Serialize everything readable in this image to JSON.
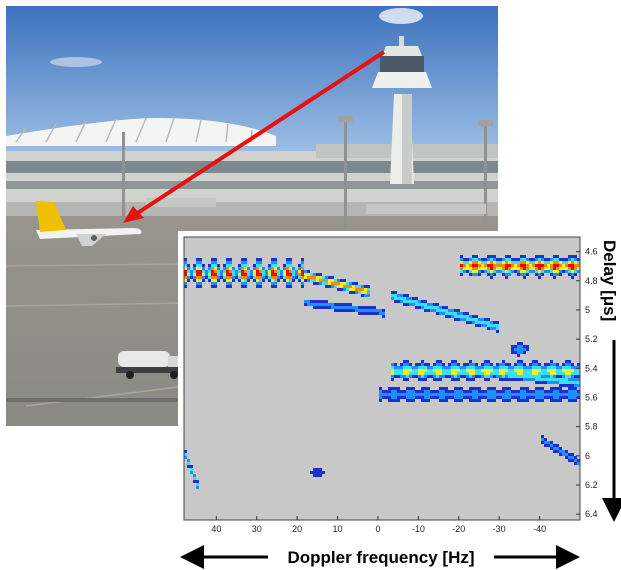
{
  "chart_data": {
    "type": "heatmap",
    "title": "",
    "xlabel": "Doppler frequency [Hz]",
    "ylabel": "Delay [μs]",
    "x_axis_direction": "reversed",
    "xlim": [
      48,
      -50
    ],
    "ylim": [
      4.5,
      6.44
    ],
    "x_ticks": [
      40,
      30,
      20,
      10,
      0,
      -10,
      -20,
      -30,
      -40
    ],
    "y_ticks": [
      4.6,
      4.8,
      5,
      5.2,
      5.4,
      5.6,
      5.8,
      6,
      6.2,
      6.4
    ],
    "background_color": "#c8c8c8",
    "colormap": [
      "#1a30d0",
      "#1f8fff",
      "#38e0f0",
      "#f0f020",
      "#ff8800",
      "#e01010"
    ],
    "components": [
      {
        "kind": "periodic-band",
        "x": [
          48,
          18
        ],
        "y": 4.75,
        "period_hz": 3.7,
        "peak_intensity": 1.0,
        "halfwidth_delay": 0.11
      },
      {
        "kind": "ridge",
        "x": [
          20,
          2
        ],
        "y": [
          4.75,
          4.88
        ],
        "peak_intensity": 0.85
      },
      {
        "kind": "ridge",
        "x": [
          -3,
          -30
        ],
        "y": [
          4.9,
          5.12
        ],
        "peak_intensity": 0.6
      },
      {
        "kind": "ridge",
        "x": [
          18,
          -2
        ],
        "y": [
          4.95,
          5.02
        ],
        "peak_intensity": 0.4
      },
      {
        "kind": "band",
        "x": [
          -20,
          -50
        ],
        "y": 4.7,
        "peak_intensity": 1.0
      },
      {
        "kind": "band",
        "x": [
          -3,
          -50
        ],
        "y": 5.42,
        "peak_intensity": 0.75
      },
      {
        "kind": "ridge",
        "x": [
          -25,
          -50
        ],
        "y": [
          5.42,
          5.5
        ],
        "peak_intensity": 0.6
      },
      {
        "kind": "band",
        "x": [
          0,
          -50
        ],
        "y": 5.58,
        "peak_intensity": 0.45
      },
      {
        "kind": "blob",
        "x": -35,
        "y": 5.27,
        "peak_intensity": 0.5
      },
      {
        "kind": "ridge",
        "x": [
          48,
          44
        ],
        "y": [
          5.97,
          6.25
        ],
        "peak_intensity": 0.55
      },
      {
        "kind": "ridge",
        "x": [
          -40,
          -50
        ],
        "y": [
          5.88,
          6.05
        ],
        "peak_intensity": 0.4
      },
      {
        "kind": "blob",
        "x": 15,
        "y": 6.12,
        "peak_intensity": 0.3
      }
    ]
  },
  "labels": {
    "ylabel_display": "Delay [μs]",
    "xlabel_display": "Doppler frequency [Hz]"
  },
  "photo": {
    "subject": "airport control tower and terminal with parked aircraft",
    "sky_color": "#5b8ac4",
    "apron_color": "#8c8a84",
    "tail_color": "#f0c000",
    "arrow_color": "#e81010"
  }
}
